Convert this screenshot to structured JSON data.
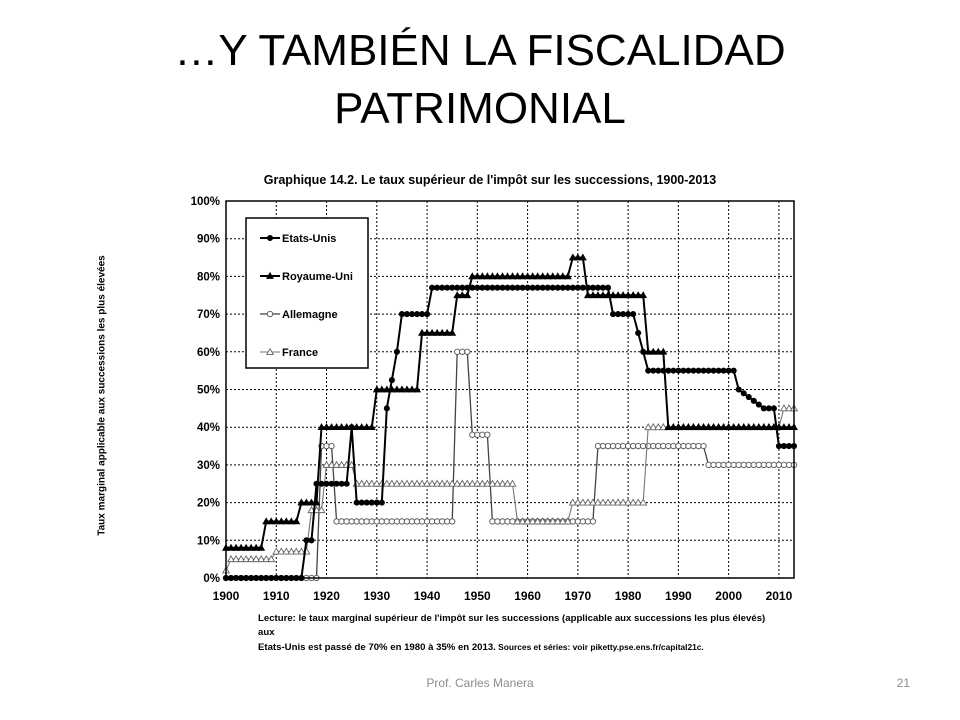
{
  "slide": {
    "title_line1": "…Y TAMBIÉN LA FISCALIDAD",
    "title_line2": "PATRIMONIAL",
    "author": "Prof. Carles Manera",
    "page": "21"
  },
  "chart_data": {
    "type": "line",
    "title": "Graphique 14.2. Le taux supérieur de l'impôt sur les successions, 1900-2013",
    "xlabel": "",
    "ylabel": "Taux marginal applicable aux successions les plus élevées",
    "xlim": [
      1900,
      2013
    ],
    "ylim": [
      0,
      100
    ],
    "x_ticks": [
      "1900",
      "1910",
      "1920",
      "1930",
      "1940",
      "1950",
      "1960",
      "1970",
      "1980",
      "1990",
      "2000",
      "2010"
    ],
    "y_ticks": [
      "0%",
      "10%",
      "20%",
      "30%",
      "40%",
      "50%",
      "60%",
      "70%",
      "80%",
      "90%",
      "100%"
    ],
    "grid": true,
    "legend_position": "top-left",
    "note_line1": "Lecture: le taux marginal supérieur de l'impôt sur les successions (applicable aux successions les plus élevés) aux",
    "note_line2": "Etats-Unis est passé de 70% en 1980 à 35% en 2013.",
    "note_sources": " Sources et séries: voir piketty.pse.ens.fr/capital21c.",
    "series": [
      {
        "name": "Etats-Unis",
        "marker": "filled-circle",
        "points": [
          [
            1900,
            0
          ],
          [
            1915,
            0
          ],
          [
            1916,
            10
          ],
          [
            1917,
            10
          ],
          [
            1918,
            25
          ],
          [
            1924,
            25
          ],
          [
            1925,
            40
          ],
          [
            1926,
            20
          ],
          [
            1931,
            20
          ],
          [
            1932,
            45
          ],
          [
            1934,
            60
          ],
          [
            1935,
            70
          ],
          [
            1940,
            70
          ],
          [
            1941,
            77
          ],
          [
            1976,
            77
          ],
          [
            1977,
            70
          ],
          [
            1981,
            70
          ],
          [
            1982,
            65
          ],
          [
            1983,
            60
          ],
          [
            1984,
            55
          ],
          [
            2001,
            55
          ],
          [
            2002,
            50
          ],
          [
            2003,
            49
          ],
          [
            2004,
            48
          ],
          [
            2005,
            47
          ],
          [
            2006,
            46
          ],
          [
            2007,
            45
          ],
          [
            2009,
            45
          ],
          [
            2010,
            35
          ],
          [
            2013,
            35
          ]
        ]
      },
      {
        "name": "Royaume-Uni",
        "marker": "filled-triangle",
        "points": [
          [
            1900,
            8
          ],
          [
            1907,
            8
          ],
          [
            1908,
            15
          ],
          [
            1914,
            15
          ],
          [
            1915,
            20
          ],
          [
            1918,
            20
          ],
          [
            1919,
            40
          ],
          [
            1929,
            40
          ],
          [
            1930,
            50
          ],
          [
            1938,
            50
          ],
          [
            1939,
            65
          ],
          [
            1945,
            65
          ],
          [
            1946,
            75
          ],
          [
            1948,
            75
          ],
          [
            1949,
            80
          ],
          [
            1968,
            80
          ],
          [
            1969,
            85
          ],
          [
            1971,
            85
          ],
          [
            1972,
            75
          ],
          [
            1983,
            75
          ],
          [
            1984,
            60
          ],
          [
            1987,
            60
          ],
          [
            1988,
            40
          ],
          [
            2013,
            40
          ]
        ]
      },
      {
        "name": "Allemagne",
        "marker": "open-circle",
        "points": [
          [
            1900,
            0
          ],
          [
            1918,
            0
          ],
          [
            1919,
            35
          ],
          [
            1921,
            35
          ],
          [
            1922,
            15
          ],
          [
            1945,
            15
          ],
          [
            1946,
            60
          ],
          [
            1948,
            60
          ],
          [
            1949,
            38
          ],
          [
            1952,
            38
          ],
          [
            1953,
            15
          ],
          [
            1973,
            15
          ],
          [
            1974,
            35
          ],
          [
            1995,
            35
          ],
          [
            1996,
            30
          ],
          [
            2013,
            30
          ]
        ]
      },
      {
        "name": "France",
        "marker": "open-triangle",
        "points": [
          [
            1900,
            2
          ],
          [
            1901,
            5
          ],
          [
            1909,
            5
          ],
          [
            1910,
            7
          ],
          [
            1916,
            7
          ],
          [
            1917,
            18
          ],
          [
            1919,
            18
          ],
          [
            1920,
            30
          ],
          [
            1925,
            30
          ],
          [
            1926,
            25
          ],
          [
            1957,
            25
          ],
          [
            1958,
            15
          ],
          [
            1968,
            15
          ],
          [
            1969,
            20
          ],
          [
            1983,
            20
          ],
          [
            1984,
            40
          ],
          [
            2010,
            40
          ],
          [
            2011,
            45
          ],
          [
            2013,
            45
          ]
        ]
      }
    ]
  }
}
